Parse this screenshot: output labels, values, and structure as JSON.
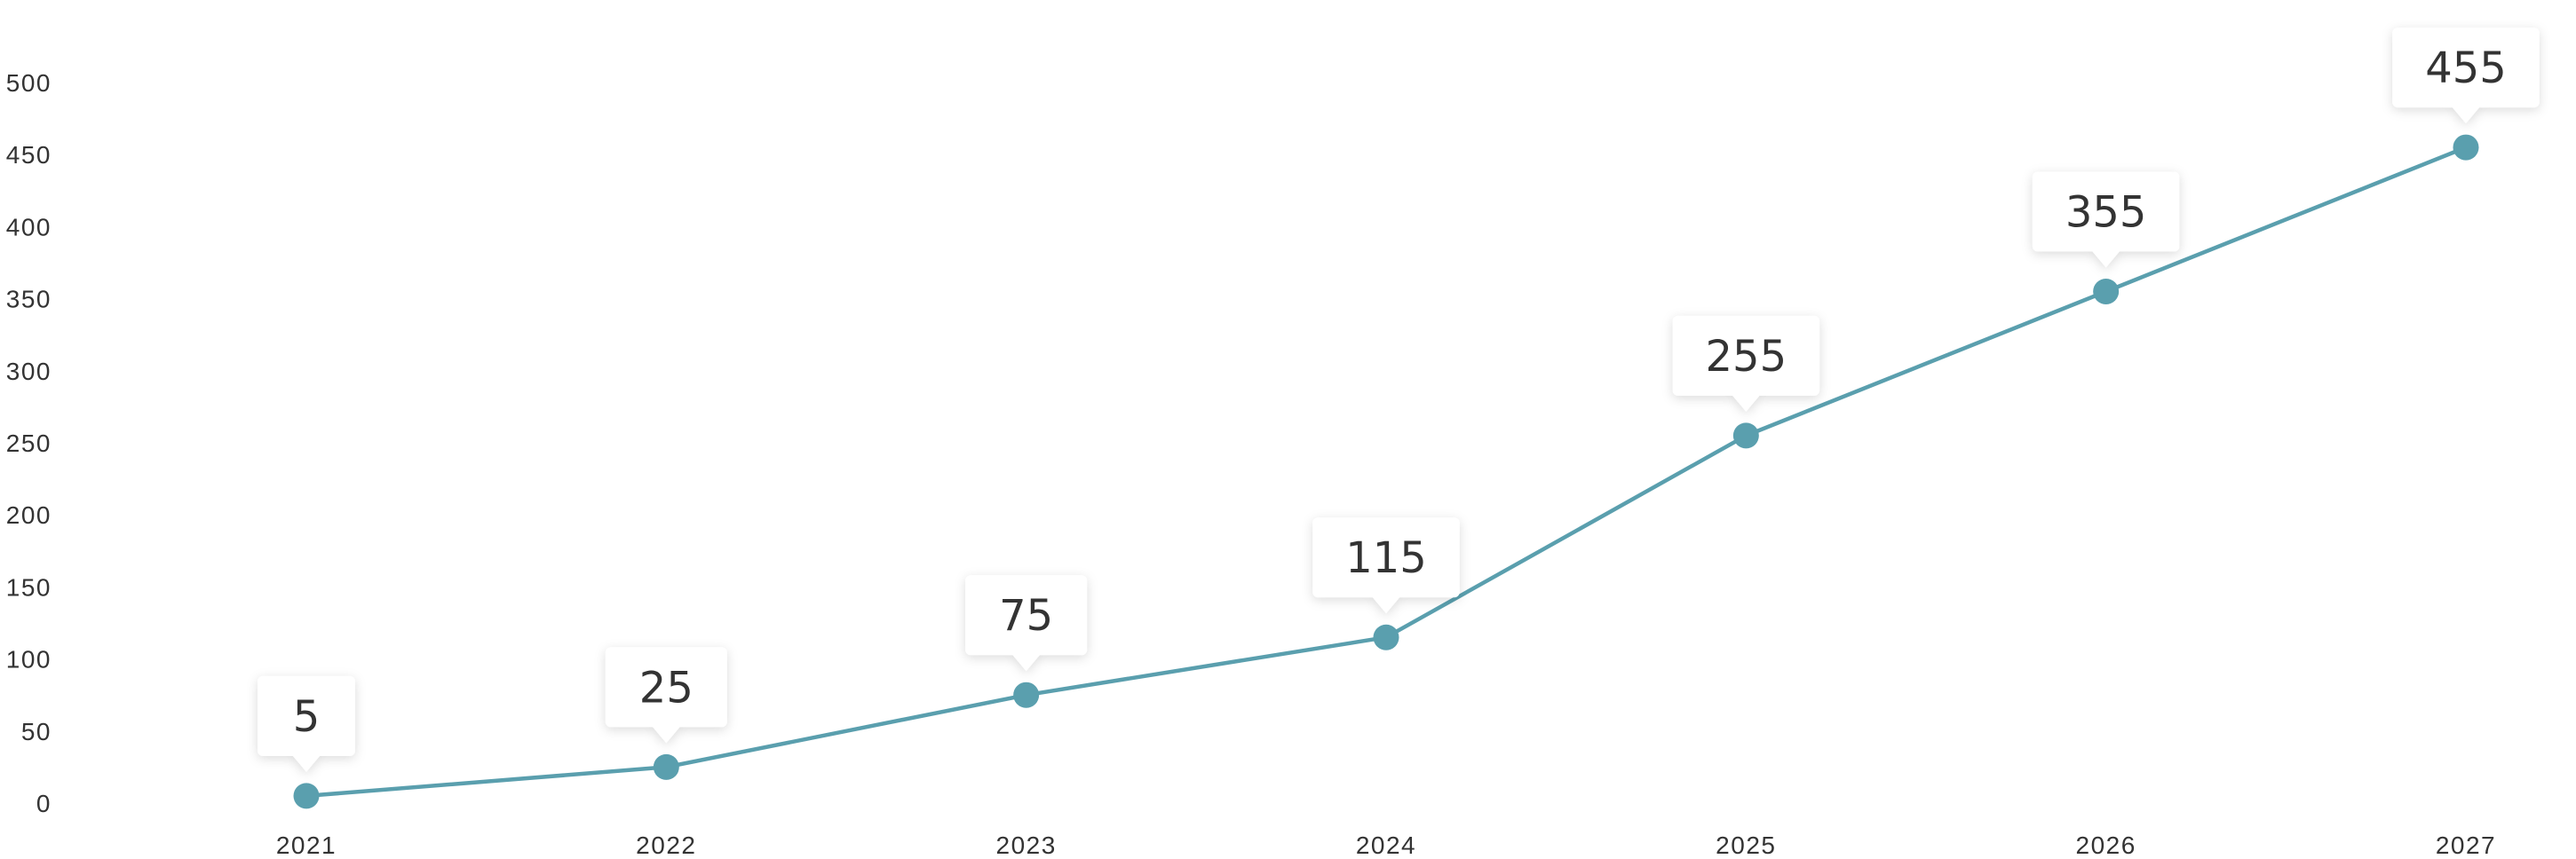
{
  "chart_data": {
    "type": "line",
    "categories": [
      "2021",
      "2022",
      "2023",
      "2024",
      "2025",
      "2026",
      "2027"
    ],
    "series": [
      {
        "values": [
          5,
          25,
          75,
          115,
          255,
          355,
          455
        ],
        "data_labels": [
          "5",
          "25",
          "75",
          "115",
          "255",
          "355",
          "455"
        ]
      }
    ],
    "y_ticks": [
      "0",
      "50",
      "100",
      "150",
      "200",
      "250",
      "300",
      "350",
      "400",
      "450",
      "500"
    ],
    "ylim": [
      0,
      500
    ],
    "grid": false,
    "legend": "none",
    "title": "",
    "xlabel": "",
    "ylabel": ""
  },
  "colors": {
    "line": "#5a9fae",
    "marker": "#5a9fae",
    "text": "#333333",
    "callout_fill": "#ffffff"
  }
}
